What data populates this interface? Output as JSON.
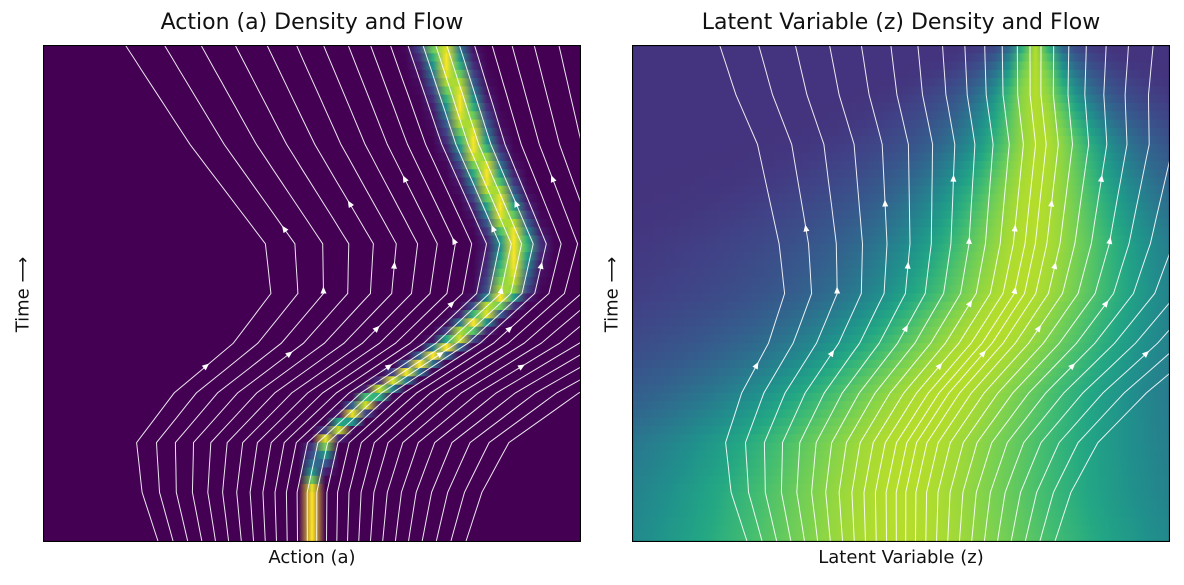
{
  "chart_data": [
    {
      "type": "heatmap",
      "title": "Action (a) Density and Flow",
      "xlabel": "Action (a)",
      "ylabel": "Time ⟶",
      "x_ticks": "none",
      "y_ticks": "none",
      "colormap": "viridis",
      "density_band": {
        "description_points_t": [
          0.0,
          0.1,
          0.2,
          0.3,
          0.4,
          0.5,
          0.6,
          0.7,
          0.8,
          0.9,
          1.0
        ],
        "center_x": [
          0.5,
          0.5,
          0.52,
          0.62,
          0.76,
          0.86,
          0.88,
          0.84,
          0.8,
          0.77,
          0.74
        ],
        "width": [
          0.002,
          0.006,
          0.01,
          0.014,
          0.018,
          0.022,
          0.024,
          0.024,
          0.024,
          0.024,
          0.024
        ]
      },
      "streamline_color": "#ffffff"
    },
    {
      "type": "heatmap",
      "title": "Latent Variable (z) Density and Flow",
      "xlabel": "Latent Variable (z)",
      "ylabel": "Time ⟶",
      "x_ticks": "none",
      "y_ticks": "none",
      "colormap": "viridis",
      "density_band": {
        "description_points_t": [
          0.0,
          0.1,
          0.2,
          0.3,
          0.4,
          0.5,
          0.6,
          0.7,
          0.8,
          0.9,
          1.0
        ],
        "center_x": [
          0.5,
          0.5,
          0.52,
          0.58,
          0.66,
          0.72,
          0.74,
          0.75,
          0.76,
          0.75,
          0.75
        ],
        "width": [
          0.3,
          0.28,
          0.26,
          0.22,
          0.19,
          0.16,
          0.14,
          0.11,
          0.08,
          0.05,
          0.02
        ]
      },
      "streamline_color": "#ffffff"
    }
  ]
}
